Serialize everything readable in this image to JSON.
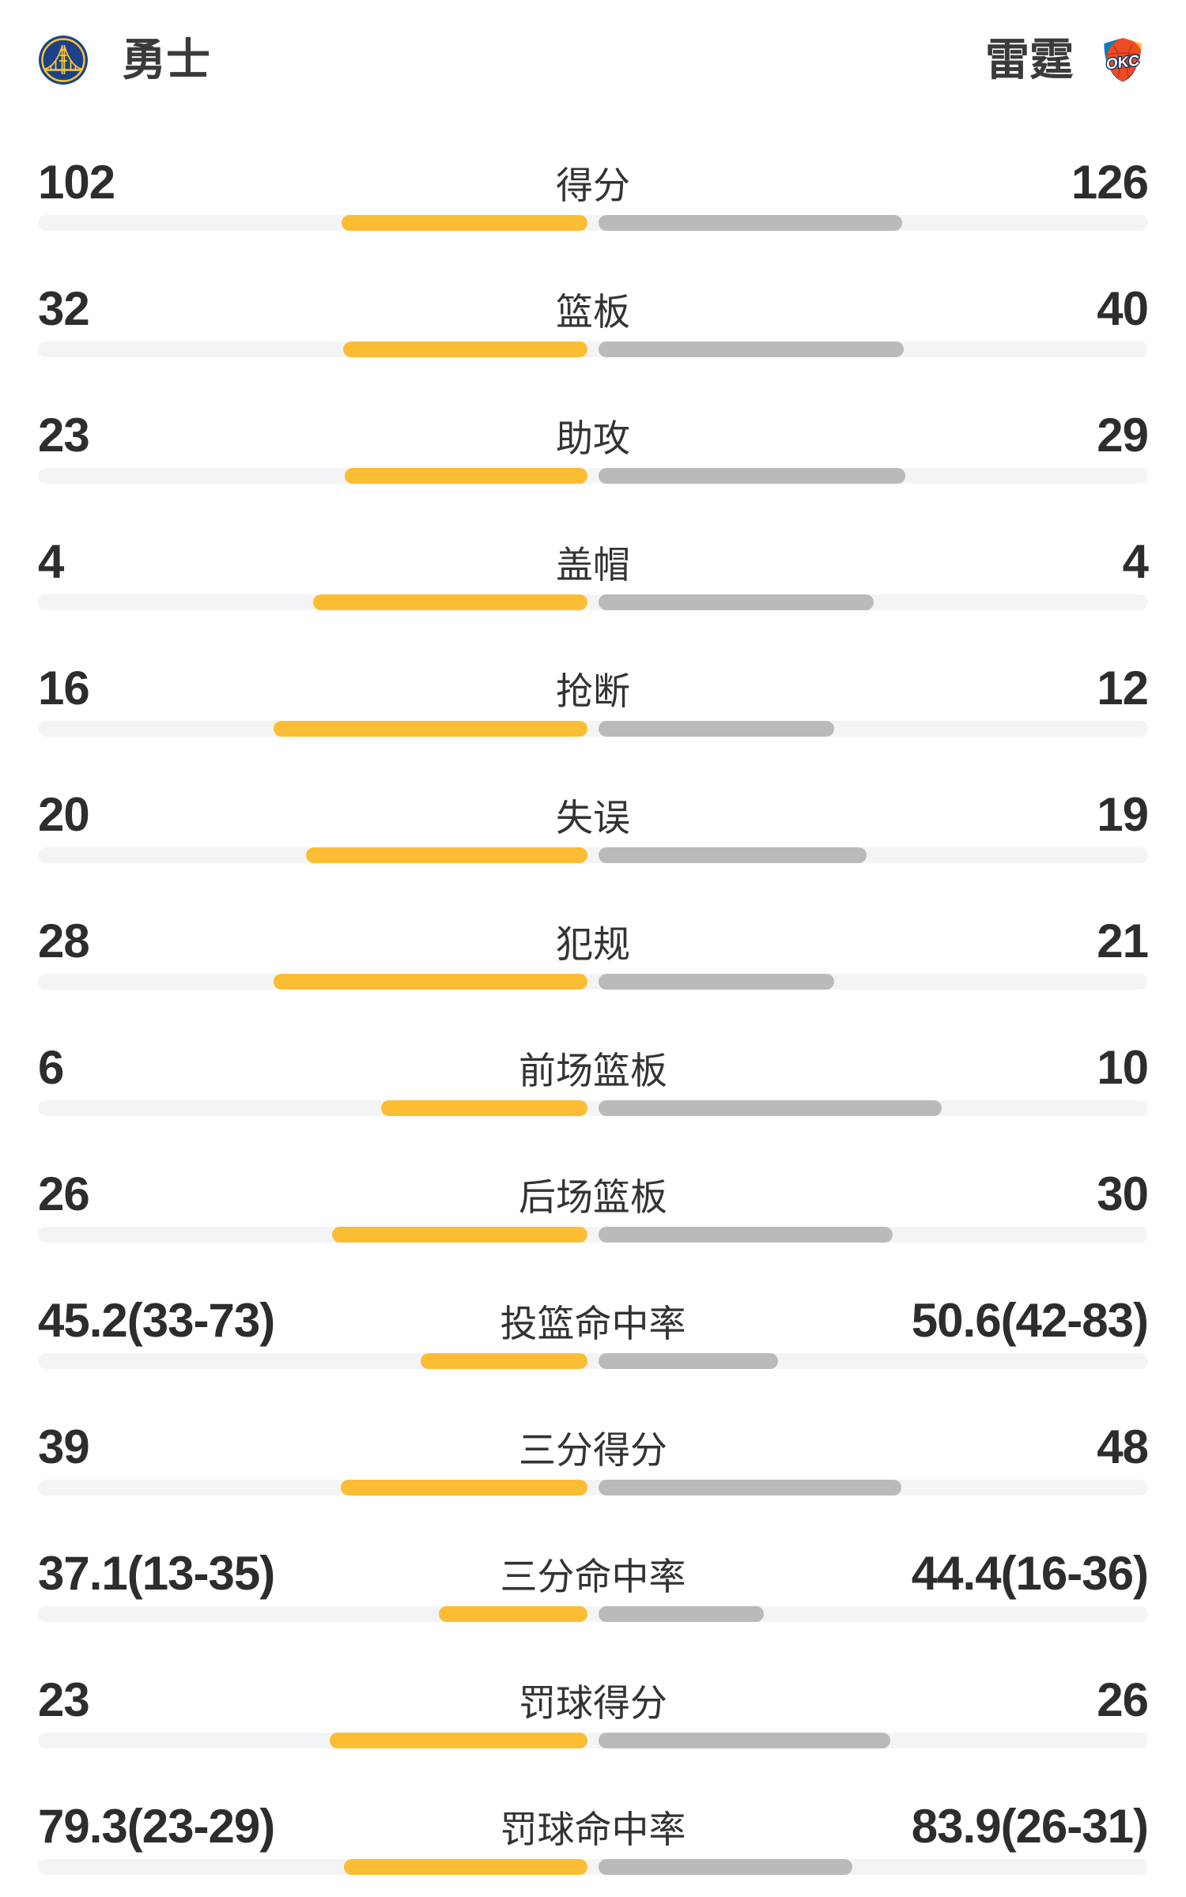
{
  "header": {
    "home_team": {
      "name": "勇士",
      "logo": "golden-state-warriors"
    },
    "away_team": {
      "name": "雷霆",
      "logo": "oklahoma-city-thunder"
    }
  },
  "colors": {
    "home_bar": "#FBBD33",
    "away_bar": "#BABABA",
    "track": "#F4F4F6",
    "value_text": "#2D2D2D",
    "label_text": "#333333",
    "warriors_blue": "#1D428A",
    "warriors_gold": "#FFC72C",
    "okc_orange": "#EC4B24",
    "okc_navy": "#002D62",
    "okc_blue": "#007DC3",
    "okc_yellow": "#FDBB30"
  },
  "chart_data": {
    "type": "bar",
    "title": "勇士 vs 雷霆 球队数据对比",
    "legend": [
      "勇士",
      "雷霆"
    ],
    "layout": "horizontal paired bars from center, home left (yellow), away right (gray)",
    "rows": [
      {
        "label": "得分",
        "home": "102",
        "away": "126",
        "home_value": 102,
        "away_value": 126,
        "kind": "count"
      },
      {
        "label": "篮板",
        "home": "32",
        "away": "40",
        "home_value": 32,
        "away_value": 40,
        "kind": "count"
      },
      {
        "label": "助攻",
        "home": "23",
        "away": "29",
        "home_value": 23,
        "away_value": 29,
        "kind": "count"
      },
      {
        "label": "盖帽",
        "home": "4",
        "away": "4",
        "home_value": 4,
        "away_value": 4,
        "kind": "count"
      },
      {
        "label": "抢断",
        "home": "16",
        "away": "12",
        "home_value": 16,
        "away_value": 12,
        "kind": "count"
      },
      {
        "label": "失误",
        "home": "20",
        "away": "19",
        "home_value": 20,
        "away_value": 19,
        "kind": "count"
      },
      {
        "label": "犯规",
        "home": "28",
        "away": "21",
        "home_value": 28,
        "away_value": 21,
        "kind": "count"
      },
      {
        "label": "前场篮板",
        "home": "6",
        "away": "10",
        "home_value": 6,
        "away_value": 10,
        "kind": "count"
      },
      {
        "label": "后场篮板",
        "home": "26",
        "away": "30",
        "home_value": 26,
        "away_value": 30,
        "kind": "count"
      },
      {
        "label": "投篮命中率",
        "home": "45.2(33-73)",
        "away": "50.6(42-83)",
        "home_value": 45.2,
        "away_value": 50.6,
        "kind": "percent"
      },
      {
        "label": "三分得分",
        "home": "39",
        "away": "48",
        "home_value": 39,
        "away_value": 48,
        "kind": "count"
      },
      {
        "label": "三分命中率",
        "home": "37.1(13-35)",
        "away": "44.4(16-36)",
        "home_value": 37.1,
        "away_value": 44.4,
        "kind": "percent"
      },
      {
        "label": "罚球得分",
        "home": "23",
        "away": "26",
        "home_value": 23,
        "away_value": 26,
        "kind": "count"
      },
      {
        "label": "罚球命中率",
        "home": "79.3(23-29)",
        "away": "83.9(26-31)",
        "home_value": 79.3,
        "away_value": 83.9,
        "kind": "percent"
      }
    ]
  }
}
